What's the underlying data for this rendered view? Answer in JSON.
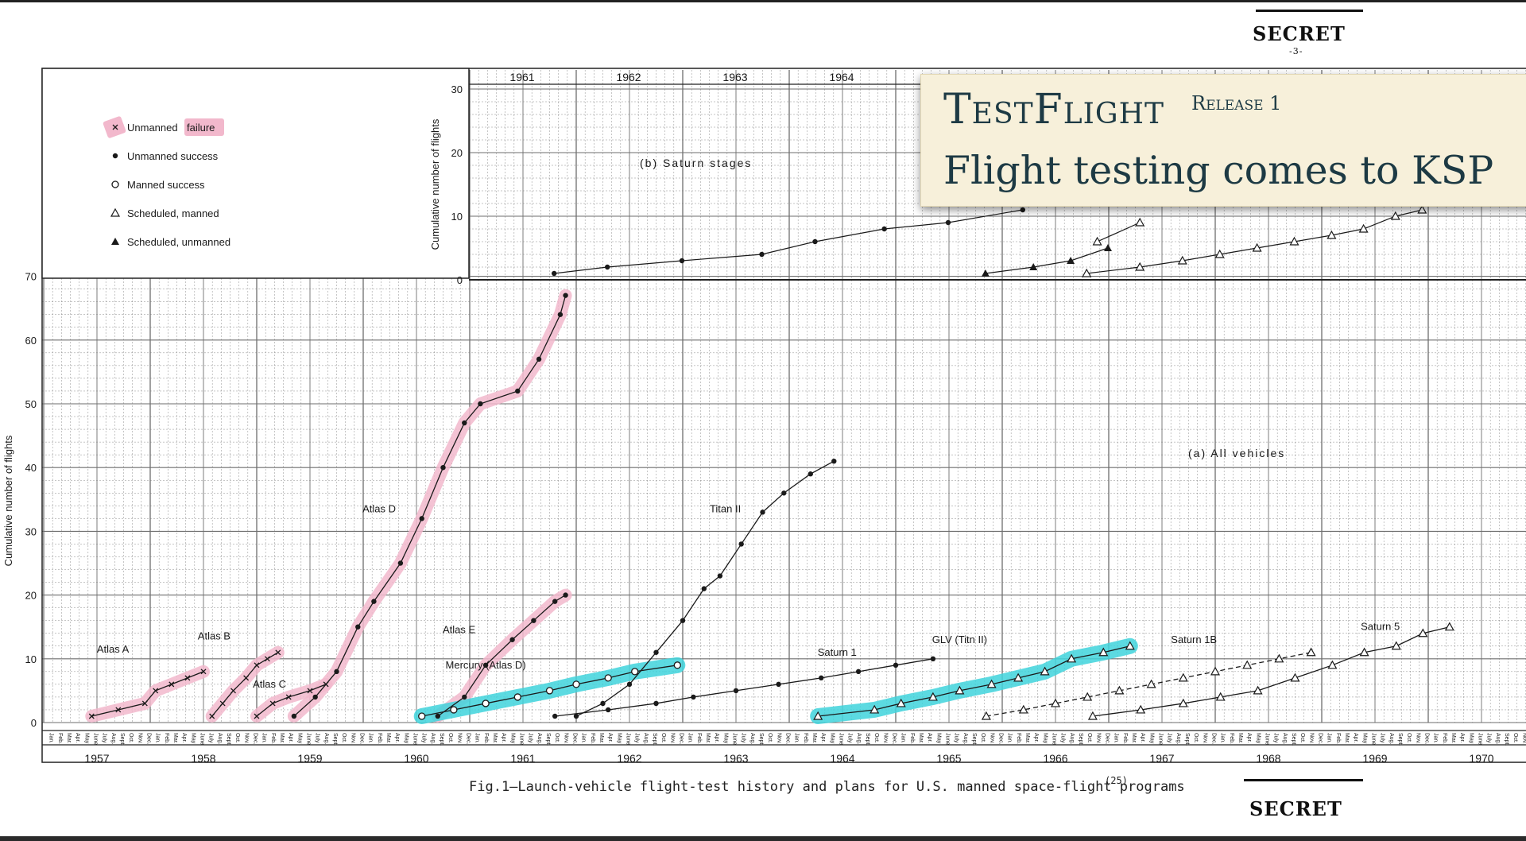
{
  "stamps": {
    "top": "SECRET",
    "page_number": "-3-",
    "bottom": "SECRET"
  },
  "banner": {
    "title": "TestFlight",
    "release": "Release 1",
    "subtitle": "Flight testing comes to KSP"
  },
  "caption": {
    "text": "Fig.1—Launch-vehicle flight-test history and plans for U.S. manned space-flight programs",
    "reference": "(25)"
  },
  "colors": {
    "failure_highlight": "#f2b8cc",
    "mercury_highlight": "#3fd4dc",
    "grid": "#6e6e6e",
    "ink": "#1a1a1a",
    "banner_bg": "#f7f0da",
    "banner_text": "#1d3a44"
  },
  "chart_data": [
    {
      "type": "line",
      "title": "(a) All vehicles",
      "ylabel": "Cumulative number of flights",
      "x_unit": "year",
      "xlim": [
        1957,
        1971
      ],
      "ylim": [
        0,
        70
      ],
      "yticks": [
        0,
        10,
        20,
        30,
        40,
        50,
        60,
        70
      ],
      "year_labels": [
        "1957",
        "1958",
        "1959",
        "1960",
        "1961",
        "1962",
        "1963",
        "1964",
        "1965",
        "1966",
        "1967",
        "1968",
        "1969",
        "1970"
      ],
      "month_labels": [
        "Jan.",
        "Feb.",
        "Mar.",
        "Apr.",
        "May",
        "June",
        "July",
        "Aug.",
        "Sept.",
        "Oct.",
        "Nov.",
        "Dec."
      ],
      "legend": {
        "placement": "top-left",
        "entries": [
          {
            "label": "Unmanned",
            "label_highlight": "failure",
            "marker": "x"
          },
          {
            "label": "Unmanned success",
            "marker": "filled-circle"
          },
          {
            "label": "Manned success",
            "marker": "open-circle"
          },
          {
            "label": "Scheduled, manned",
            "marker": "open-triangle"
          },
          {
            "label": "Scheduled, unmanned",
            "marker": "filled-triangle"
          }
        ]
      },
      "series": [
        {
          "name": "Atlas A",
          "x": [
            1957.45,
            1957.7,
            1957.95,
            1958.05,
            1958.2,
            1958.35,
            1958.5
          ],
          "y": [
            1,
            2,
            3,
            5,
            6,
            7,
            8
          ]
        },
        {
          "name": "Atlas B",
          "x": [
            1958.58,
            1958.68,
            1958.78,
            1958.9,
            1959.0,
            1959.1,
            1959.2
          ],
          "y": [
            1,
            3,
            5,
            7,
            9,
            10,
            11
          ]
        },
        {
          "name": "Atlas C",
          "x": [
            1959.0,
            1959.15,
            1959.3,
            1959.5,
            1959.65
          ],
          "y": [
            1,
            3,
            4,
            5,
            6
          ]
        },
        {
          "name": "Atlas D",
          "x": [
            1959.35,
            1959.55,
            1959.75,
            1959.95,
            1960.1,
            1960.35,
            1960.55,
            1960.75,
            1960.95,
            1961.1,
            1961.45,
            1961.65,
            1961.85,
            1961.9
          ],
          "y": [
            1,
            4,
            8,
            15,
            19,
            25,
            32,
            40,
            47,
            50,
            52,
            57,
            64,
            67
          ]
        },
        {
          "name": "Atlas E",
          "x": [
            1960.7,
            1960.95,
            1961.15,
            1961.4,
            1961.6,
            1961.8,
            1961.9
          ],
          "y": [
            1,
            4,
            9,
            13,
            16,
            19,
            20
          ]
        },
        {
          "name": "Titan II",
          "x": [
            1962.0,
            1962.25,
            1962.5,
            1962.75,
            1963.0,
            1963.2,
            1963.35,
            1963.55,
            1963.75,
            1963.95,
            1964.2,
            1964.42
          ],
          "y": [
            1,
            3,
            6,
            11,
            16,
            21,
            23,
            28,
            33,
            36,
            39,
            41
          ]
        },
        {
          "name": "Mercury (Atlas D)",
          "x": [
            1960.55,
            1960.85,
            1961.15,
            1961.45,
            1961.75,
            1962.0,
            1962.3,
            1962.55,
            1962.95
          ],
          "y": [
            1,
            2,
            3,
            4,
            5,
            6,
            7,
            8,
            9
          ]
        },
        {
          "name": "Saturn 1",
          "x": [
            1961.8,
            1962.3,
            1962.75,
            1963.1,
            1963.5,
            1963.9,
            1964.3,
            1964.65,
            1965.0,
            1965.35
          ],
          "y": [
            1,
            2,
            3,
            4,
            5,
            6,
            7,
            8,
            9,
            10
          ]
        },
        {
          "name": "GLV (Titn II)",
          "x": [
            1964.27,
            1964.8,
            1965.05,
            1965.35,
            1965.6,
            1965.9,
            1966.15,
            1966.4,
            1966.65,
            1966.95,
            1967.2
          ],
          "y": [
            1,
            2,
            3,
            4,
            5,
            6,
            7,
            8,
            10,
            11,
            12
          ]
        },
        {
          "name": "Saturn 1B",
          "x": [
            1965.85,
            1966.2,
            1966.5,
            1966.8,
            1967.1,
            1967.4,
            1967.7,
            1968.0,
            1968.3,
            1968.6,
            1968.9
          ],
          "y": [
            1,
            2,
            3,
            4,
            5,
            6,
            7,
            8,
            9,
            10,
            11
          ]
        },
        {
          "name": "Saturn 5",
          "x": [
            1966.85,
            1967.3,
            1967.7,
            1968.05,
            1968.4,
            1968.75,
            1969.1,
            1969.4,
            1969.7,
            1969.95,
            1970.2
          ],
          "y": [
            1,
            2,
            3,
            4,
            5,
            7,
            9,
            11,
            12,
            14,
            15
          ]
        }
      ]
    },
    {
      "type": "line",
      "title": "(b) Saturn stages",
      "ylabel": "Cumulative number of flights",
      "x_unit": "year",
      "xlim": [
        1961,
        1971
      ],
      "ylim": [
        0,
        30
      ],
      "yticks": [
        0,
        10,
        20,
        30
      ],
      "year_labels": [
        "1961",
        "1962",
        "1963",
        "1964"
      ],
      "series": [
        {
          "x": [
            1961.8,
            1962.3,
            1963.0,
            1963.75,
            1964.25,
            1964.9,
            1965.5,
            1966.2
          ],
          "y": [
            1,
            2,
            3,
            4,
            6,
            8,
            9,
            11
          ]
        },
        {
          "x": [
            1965.85,
            1966.3,
            1966.65,
            1967.0
          ],
          "y": [
            1,
            2,
            3,
            5
          ]
        },
        {
          "x": [
            1966.8,
            1967.3,
            1967.7,
            1968.05,
            1968.4,
            1968.75,
            1969.1,
            1969.4,
            1969.7,
            1969.95
          ],
          "y": [
            1,
            2,
            3,
            4,
            5,
            6,
            7,
            8,
            10,
            11
          ]
        },
        {
          "x": [
            1966.9,
            1967.3
          ],
          "y": [
            6,
            9
          ]
        }
      ]
    }
  ]
}
